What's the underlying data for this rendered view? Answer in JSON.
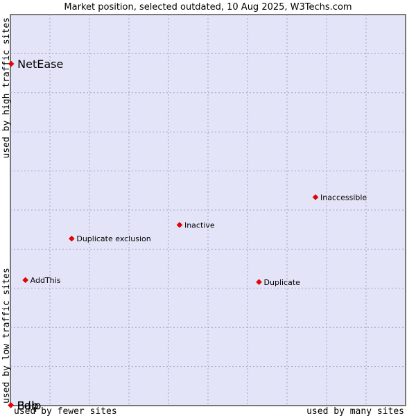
{
  "chart_data": {
    "type": "scatter",
    "title": "Market position, selected outdated, 10 Aug 2025, W3Techs.com",
    "xlabel_left": "used by fewer sites",
    "xlabel_right": "used by many sites",
    "ylabel_bottom": "used by low traffic sites",
    "ylabel_top": "used by high traffic sites",
    "xlim": [
      0,
      100
    ],
    "ylim": [
      0,
      100
    ],
    "grid": true,
    "colors": {
      "plot_background": "#e4e4f8",
      "point": "#ee0000",
      "grid": "#a0a0c8"
    },
    "points": [
      {
        "label": "NetEase",
        "x": 0.2,
        "y": 87.4,
        "emphasis": true
      },
      {
        "label": "Inaccessible",
        "x": 77.2,
        "y": 53.3,
        "emphasis": false
      },
      {
        "label": "Inactive",
        "x": 42.8,
        "y": 46.2,
        "emphasis": false
      },
      {
        "label": "Duplicate exclusion",
        "x": 15.5,
        "y": 42.7,
        "emphasis": false
      },
      {
        "label": "AddThis",
        "x": 3.8,
        "y": 32.1,
        "emphasis": false
      },
      {
        "label": "Duplicate",
        "x": 62.9,
        "y": 31.6,
        "emphasis": false
      },
      {
        "label": "Bab",
        "x": 0.1,
        "y": 0.1,
        "emphasis": true
      },
      {
        "label": "Edip",
        "x": 0.1,
        "y": 0.1,
        "emphasis": true
      }
    ]
  }
}
